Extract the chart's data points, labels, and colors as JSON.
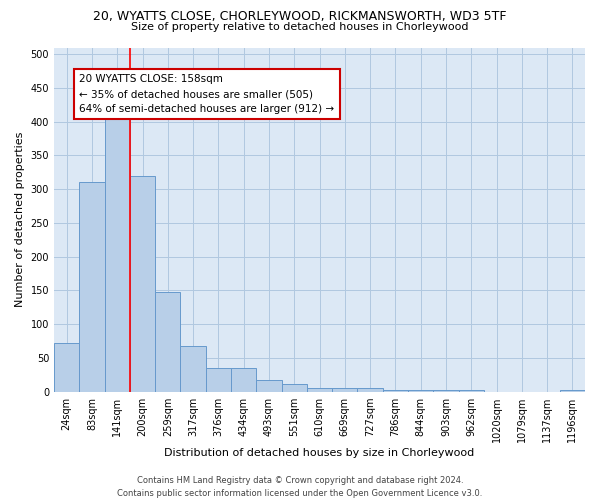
{
  "title_line1": "20, WYATTS CLOSE, CHORLEYWOOD, RICKMANSWORTH, WD3 5TF",
  "title_line2": "Size of property relative to detached houses in Chorleywood",
  "xlabel": "Distribution of detached houses by size in Chorleywood",
  "ylabel": "Number of detached properties",
  "categories": [
    "24sqm",
    "83sqm",
    "141sqm",
    "200sqm",
    "259sqm",
    "317sqm",
    "376sqm",
    "434sqm",
    "493sqm",
    "551sqm",
    "610sqm",
    "669sqm",
    "727sqm",
    "786sqm",
    "844sqm",
    "903sqm",
    "962sqm",
    "1020sqm",
    "1079sqm",
    "1137sqm",
    "1196sqm"
  ],
  "values": [
    72,
    310,
    410,
    320,
    147,
    68,
    35,
    35,
    18,
    11,
    5,
    5,
    5,
    2,
    2,
    2,
    2,
    0,
    0,
    0,
    3
  ],
  "bar_color": "#b8cfe8",
  "bar_edge_color": "#6699cc",
  "red_line_x": 2.5,
  "annotation_text": "20 WYATTS CLOSE: 158sqm\n← 35% of detached houses are smaller (505)\n64% of semi-detached houses are larger (912) →",
  "annotation_box_color": "#ffffff",
  "annotation_box_edge_color": "#cc0000",
  "ylim": [
    0,
    510
  ],
  "yticks": [
    0,
    50,
    100,
    150,
    200,
    250,
    300,
    350,
    400,
    450,
    500
  ],
  "footer_line1": "Contains HM Land Registry data © Crown copyright and database right 2024.",
  "footer_line2": "Contains public sector information licensed under the Open Government Licence v3.0.",
  "background_color": "#ffffff",
  "plot_bg_color": "#dce8f5",
  "grid_color": "#b0c8e0",
  "title_fontsize": 9,
  "subtitle_fontsize": 8,
  "ylabel_fontsize": 8,
  "xlabel_fontsize": 8,
  "tick_fontsize": 7,
  "footer_fontsize": 6,
  "annot_fontsize": 7.5
}
